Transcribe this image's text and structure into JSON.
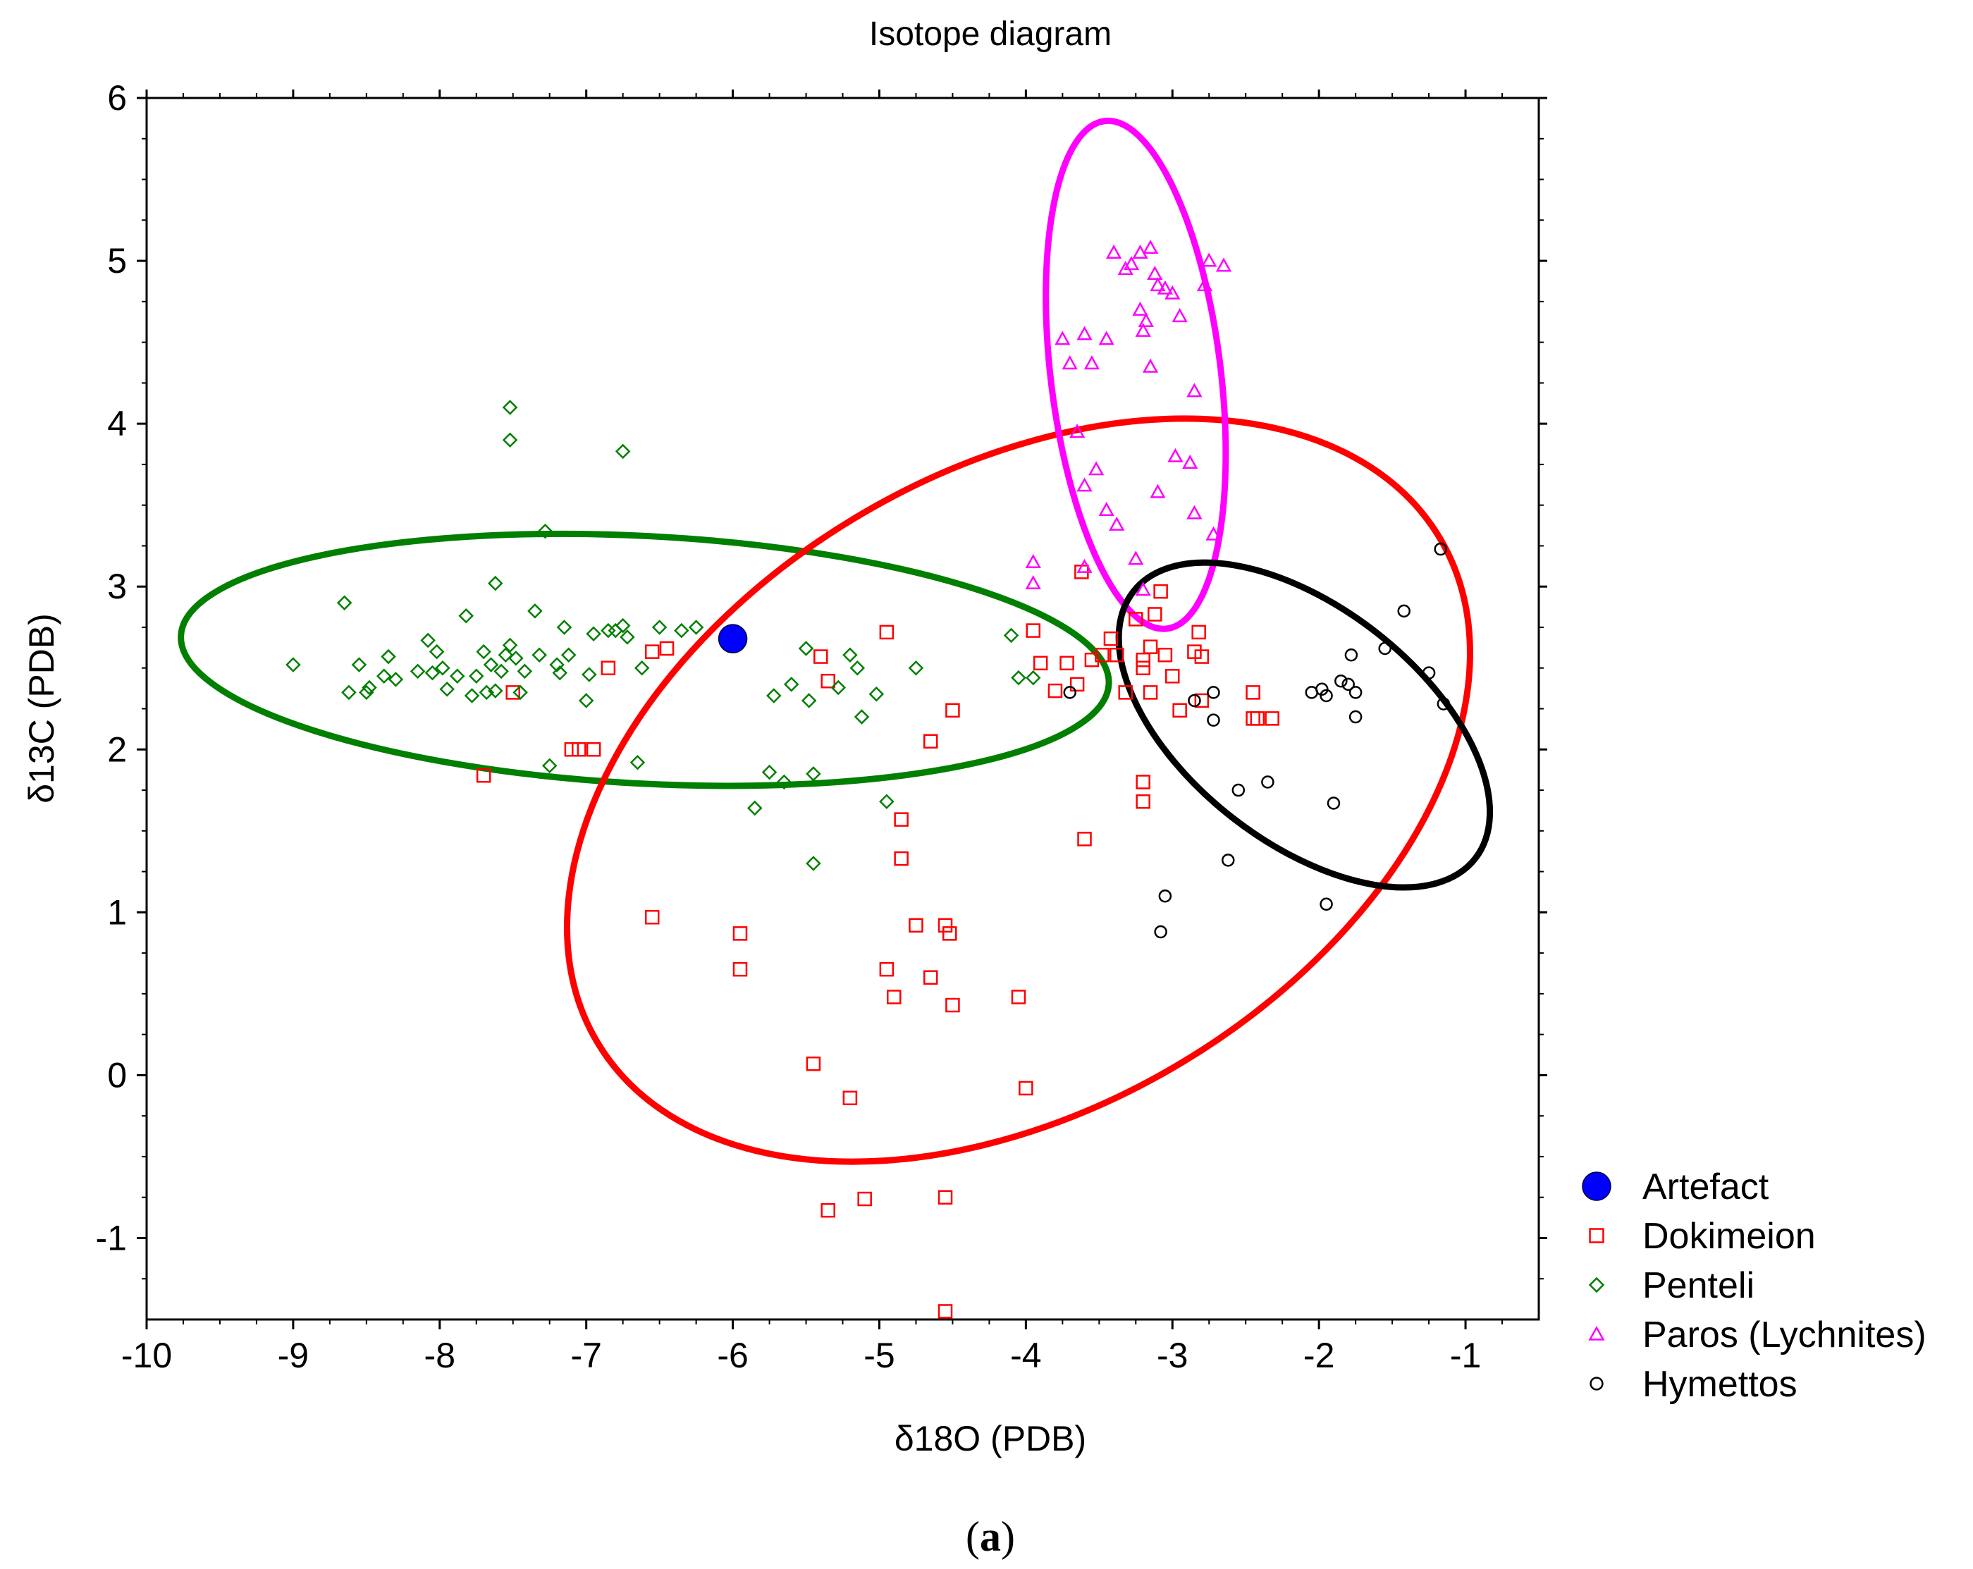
{
  "chart_data": {
    "type": "scatter",
    "title": "Isotope diagram",
    "xlabel": "δ18O (PDB)",
    "ylabel": "δ13C (PDB)",
    "xlim": [
      -10,
      -0.5
    ],
    "ylim": [
      -1.5,
      6
    ],
    "xticks": [
      -10,
      -9,
      -8,
      -7,
      -6,
      -5,
      -4,
      -3,
      -2,
      -1
    ],
    "yticks": [
      -1,
      0,
      1,
      2,
      3,
      4,
      5,
      6
    ],
    "grid": false,
    "legend_position": "right-bottom, outside plot",
    "caption": {
      "open": "(",
      "letter": "a",
      "close": ")"
    },
    "series": [
      {
        "name": "Artefact",
        "marker": "filled-circle",
        "color": "#0000ff",
        "points": [
          [
            -6.0,
            2.68
          ]
        ]
      },
      {
        "name": "Dokimeion",
        "marker": "square",
        "color": "#ff0000",
        "points": [
          [
            -7.5,
            2.35
          ],
          [
            -7.7,
            1.84
          ],
          [
            -7.1,
            2.0
          ],
          [
            -7.05,
            2.0
          ],
          [
            -6.95,
            2.0
          ],
          [
            -6.85,
            2.5
          ],
          [
            -6.55,
            2.6
          ],
          [
            -6.45,
            2.62
          ],
          [
            -5.4,
            2.57
          ],
          [
            -5.35,
            2.42
          ],
          [
            -4.95,
            2.72
          ],
          [
            -4.65,
            2.05
          ],
          [
            -4.5,
            2.24
          ],
          [
            -4.85,
            1.57
          ],
          [
            -4.85,
            1.33
          ],
          [
            -6.55,
            0.97
          ],
          [
            -5.95,
            0.87
          ],
          [
            -5.95,
            0.65
          ],
          [
            -4.95,
            0.65
          ],
          [
            -4.9,
            0.48
          ],
          [
            -4.75,
            0.92
          ],
          [
            -4.65,
            0.6
          ],
          [
            -4.55,
            0.92
          ],
          [
            -4.52,
            0.87
          ],
          [
            -4.5,
            0.43
          ],
          [
            -4.05,
            0.48
          ],
          [
            -4.0,
            -0.08
          ],
          [
            -5.45,
            0.07
          ],
          [
            -5.2,
            -0.14
          ],
          [
            -5.35,
            -0.83
          ],
          [
            -5.1,
            -0.76
          ],
          [
            -4.55,
            -0.75
          ],
          [
            -4.55,
            -1.45
          ],
          [
            -3.95,
            2.73
          ],
          [
            -3.9,
            2.53
          ],
          [
            -3.8,
            2.36
          ],
          [
            -3.72,
            2.53
          ],
          [
            -3.65,
            2.4
          ],
          [
            -3.62,
            3.09
          ],
          [
            -3.55,
            2.55
          ],
          [
            -3.48,
            2.58
          ],
          [
            -3.42,
            2.68
          ],
          [
            -3.38,
            2.58
          ],
          [
            -3.32,
            2.35
          ],
          [
            -3.25,
            2.8
          ],
          [
            -3.2,
            2.55
          ],
          [
            -3.15,
            2.63
          ],
          [
            -3.12,
            2.83
          ],
          [
            -3.08,
            2.97
          ],
          [
            -3.05,
            2.58
          ],
          [
            -3.0,
            2.45
          ],
          [
            -2.95,
            2.24
          ],
          [
            -2.85,
            2.6
          ],
          [
            -2.82,
            2.72
          ],
          [
            -2.8,
            2.57
          ],
          [
            -2.8,
            2.3
          ],
          [
            -2.45,
            2.35
          ],
          [
            -2.45,
            2.19
          ],
          [
            -2.42,
            2.19
          ],
          [
            -2.32,
            2.19
          ],
          [
            -3.15,
            2.35
          ],
          [
            -3.2,
            1.8
          ],
          [
            -3.2,
            1.68
          ],
          [
            -3.6,
            1.45
          ],
          [
            -3.2,
            2.5
          ]
        ]
      },
      {
        "name": "Penteli",
        "marker": "diamond",
        "color": "#007f00",
        "points": [
          [
            -9.0,
            2.52
          ],
          [
            -8.65,
            2.9
          ],
          [
            -8.62,
            2.35
          ],
          [
            -8.55,
            2.52
          ],
          [
            -8.5,
            2.35
          ],
          [
            -8.48,
            2.38
          ],
          [
            -8.38,
            2.45
          ],
          [
            -8.35,
            2.57
          ],
          [
            -8.3,
            2.43
          ],
          [
            -8.15,
            2.48
          ],
          [
            -8.08,
            2.67
          ],
          [
            -8.05,
            2.47
          ],
          [
            -8.02,
            2.6
          ],
          [
            -7.98,
            2.5
          ],
          [
            -7.95,
            2.37
          ],
          [
            -7.88,
            2.45
          ],
          [
            -7.82,
            2.82
          ],
          [
            -7.78,
            2.33
          ],
          [
            -7.75,
            2.45
          ],
          [
            -7.7,
            2.6
          ],
          [
            -7.68,
            2.35
          ],
          [
            -7.65,
            2.52
          ],
          [
            -7.62,
            2.36
          ],
          [
            -7.62,
            3.02
          ],
          [
            -7.58,
            2.48
          ],
          [
            -7.55,
            2.58
          ],
          [
            -7.52,
            2.64
          ],
          [
            -7.52,
            4.1
          ],
          [
            -7.52,
            3.9
          ],
          [
            -7.48,
            2.56
          ],
          [
            -7.45,
            2.35
          ],
          [
            -7.42,
            2.48
          ],
          [
            -7.35,
            2.85
          ],
          [
            -7.32,
            2.58
          ],
          [
            -7.28,
            3.34
          ],
          [
            -7.2,
            2.52
          ],
          [
            -7.18,
            2.47
          ],
          [
            -7.15,
            2.75
          ],
          [
            -7.12,
            2.58
          ],
          [
            -7.0,
            2.3
          ],
          [
            -6.98,
            2.46
          ],
          [
            -6.95,
            2.71
          ],
          [
            -6.85,
            2.73
          ],
          [
            -6.8,
            2.73
          ],
          [
            -6.75,
            2.76
          ],
          [
            -6.75,
            3.83
          ],
          [
            -6.72,
            2.69
          ],
          [
            -6.65,
            1.92
          ],
          [
            -6.62,
            2.5
          ],
          [
            -6.5,
            2.75
          ],
          [
            -6.35,
            2.73
          ],
          [
            -6.25,
            2.75
          ],
          [
            -5.95,
            2.68
          ],
          [
            -5.85,
            1.64
          ],
          [
            -5.75,
            1.86
          ],
          [
            -5.72,
            2.33
          ],
          [
            -5.65,
            1.8
          ],
          [
            -5.6,
            2.4
          ],
          [
            -5.5,
            2.62
          ],
          [
            -5.48,
            2.3
          ],
          [
            -5.45,
            1.85
          ],
          [
            -5.45,
            1.3
          ],
          [
            -5.28,
            2.38
          ],
          [
            -5.2,
            2.58
          ],
          [
            -5.15,
            2.5
          ],
          [
            -5.12,
            2.2
          ],
          [
            -5.02,
            2.34
          ],
          [
            -4.95,
            1.68
          ],
          [
            -4.75,
            2.5
          ],
          [
            -4.1,
            2.7
          ],
          [
            -4.05,
            2.44
          ],
          [
            -3.95,
            2.44
          ],
          [
            -7.25,
            1.9
          ]
        ]
      },
      {
        "name": "Paros (Lychnites)",
        "marker": "triangle",
        "color": "#ff00ff",
        "points": [
          [
            -3.4,
            5.05
          ],
          [
            -3.32,
            4.95
          ],
          [
            -3.28,
            4.98
          ],
          [
            -3.22,
            5.05
          ],
          [
            -3.15,
            5.08
          ],
          [
            -3.12,
            4.92
          ],
          [
            -3.1,
            4.85
          ],
          [
            -3.05,
            4.83
          ],
          [
            -3.0,
            4.8
          ],
          [
            -2.95,
            4.66
          ],
          [
            -2.78,
            4.85
          ],
          [
            -2.75,
            5.0
          ],
          [
            -2.65,
            4.97
          ],
          [
            -3.6,
            4.55
          ],
          [
            -3.55,
            4.37
          ],
          [
            -3.45,
            4.52
          ],
          [
            -3.22,
            4.7
          ],
          [
            -3.2,
            4.57
          ],
          [
            -3.15,
            4.35
          ],
          [
            -3.18,
            4.63
          ],
          [
            -3.7,
            4.37
          ],
          [
            -3.75,
            4.52
          ],
          [
            -2.85,
            4.2
          ],
          [
            -3.65,
            3.95
          ],
          [
            -3.6,
            3.62
          ],
          [
            -3.52,
            3.72
          ],
          [
            -3.45,
            3.47
          ],
          [
            -3.38,
            3.38
          ],
          [
            -3.25,
            3.17
          ],
          [
            -3.2,
            2.98
          ],
          [
            -3.1,
            3.58
          ],
          [
            -2.98,
            3.8
          ],
          [
            -2.88,
            3.76
          ],
          [
            -2.85,
            3.45
          ],
          [
            -2.72,
            3.32
          ],
          [
            -3.6,
            3.12
          ],
          [
            -3.95,
            3.02
          ],
          [
            -3.95,
            3.15
          ]
        ]
      },
      {
        "name": "Hymettos",
        "marker": "circle",
        "color": "#000000",
        "points": [
          [
            -3.7,
            2.35
          ],
          [
            -2.85,
            2.3
          ],
          [
            -2.72,
            2.35
          ],
          [
            -2.72,
            2.18
          ],
          [
            -2.55,
            1.75
          ],
          [
            -2.35,
            1.8
          ],
          [
            -2.62,
            1.32
          ],
          [
            -3.05,
            1.1
          ],
          [
            -3.08,
            0.88
          ],
          [
            -2.05,
            2.35
          ],
          [
            -1.98,
            2.37
          ],
          [
            -1.95,
            2.33
          ],
          [
            -1.85,
            2.42
          ],
          [
            -1.8,
            2.4
          ],
          [
            -1.78,
            2.58
          ],
          [
            -1.75,
            2.35
          ],
          [
            -1.75,
            2.2
          ],
          [
            -1.9,
            1.67
          ],
          [
            -1.95,
            1.05
          ],
          [
            -1.55,
            2.62
          ],
          [
            -1.42,
            2.85
          ],
          [
            -1.25,
            2.47
          ],
          [
            -1.17,
            3.23
          ],
          [
            -1.15,
            2.28
          ]
        ]
      }
    ],
    "ellipses": [
      {
        "name": "Penteli ellipse",
        "color": "#007f00",
        "cx": -6.6,
        "cy": 2.55,
        "rx": 3.17,
        "ry": 0.76,
        "rotation_deg": -3
      },
      {
        "name": "Dokimeion ellipse",
        "color": "#ff0000",
        "cx": -4.05,
        "cy": 1.75,
        "rx": 3.35,
        "ry": 1.95,
        "rotation_deg": 31
      },
      {
        "name": "Paros ellipse",
        "color": "#ff00ff",
        "cx": -3.25,
        "cy": 4.3,
        "rx": 0.58,
        "ry": 1.57,
        "rotation_deg": 7
      },
      {
        "name": "Hymettos ellipse",
        "color": "#000000",
        "cx": -2.1,
        "cy": 2.15,
        "rx": 1.48,
        "ry": 0.72,
        "rotation_deg": -38
      }
    ]
  }
}
